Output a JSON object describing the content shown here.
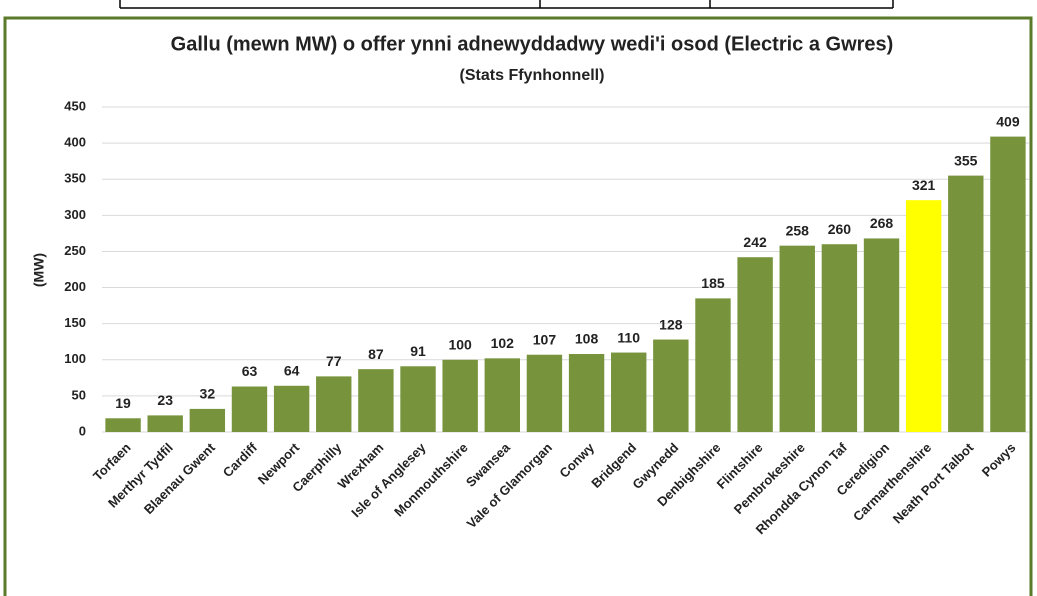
{
  "chart_data": {
    "type": "bar",
    "title": "Gallu (mewn MW) o offer ynni adnewyddadwy wedi'i osod (Electric a Gwres)",
    "subtitle": "(Stats Ffynhonnell)",
    "y_label": "(MW)",
    "categories": [
      "Torfaen",
      "Merthyr Tydfil",
      "Blaenau Gwent",
      "Cardiff",
      "Newport",
      "Caerphilly",
      "Wrexham",
      "Isle of Anglesey",
      "Monmouthshire",
      "Swansea",
      "Vale of Glamorgan",
      "Conwy",
      "Bridgend",
      "Gwynedd",
      "Denbighshire",
      "Flintshire",
      "Pembrokeshire",
      "Rhondda Cynon Taf",
      "Ceredigion",
      "Carmarthenshire",
      "Neath Port Talbot",
      "Powys"
    ],
    "values": [
      19,
      23,
      32,
      63,
      64,
      77,
      87,
      91,
      100,
      102,
      107,
      108,
      110,
      128,
      185,
      242,
      258,
      260,
      268,
      321,
      355,
      409
    ],
    "colors": [
      "#77933c",
      "#77933c",
      "#77933c",
      "#77933c",
      "#77933c",
      "#77933c",
      "#77933c",
      "#77933c",
      "#77933c",
      "#77933c",
      "#77933c",
      "#77933c",
      "#77933c",
      "#77933c",
      "#77933c",
      "#77933c",
      "#77933c",
      "#77933c",
      "#77933c",
      "#ffff00",
      "#77933c",
      "#77933c"
    ],
    "ylim": [
      0,
      450
    ],
    "yticks": [
      0,
      50,
      100,
      150,
      200,
      250,
      300,
      350,
      400,
      450
    ],
    "grid": true
  }
}
